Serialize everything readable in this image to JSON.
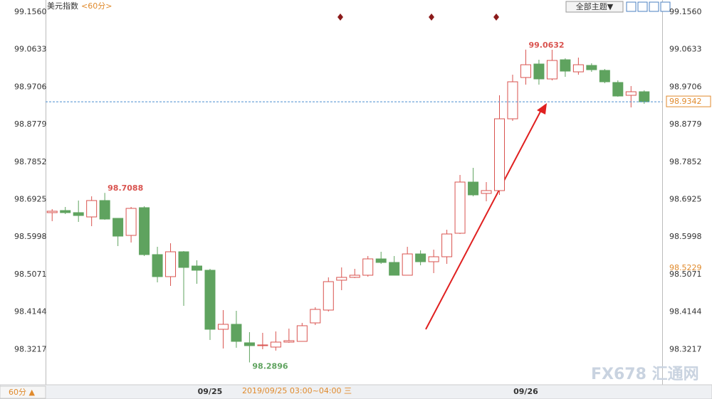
{
  "chart_data": {
    "type": "candlestick",
    "title": "美元指数",
    "period": "<60分>",
    "theme_button": "全部主题▼",
    "period_button": "60分 ▲",
    "footer": "2019/09/25 03:00~04:00 三",
    "watermark": "FX678 汇通网",
    "up_color": "#d9534f",
    "down_color": "#5fa35f",
    "categories": [
      null,
      null,
      null,
      null,
      null,
      null,
      null,
      null,
      null,
      null,
      null,
      null,
      "09/25",
      null,
      null,
      null,
      null,
      null,
      null,
      null,
      null,
      null,
      null,
      null,
      null,
      null,
      null,
      null,
      null,
      null,
      null,
      null,
      null,
      null,
      null,
      null,
      "09/26",
      null,
      null,
      null,
      null,
      null,
      null,
      null,
      null,
      null
    ],
    "open": [
      98.66,
      98.6652,
      98.66,
      98.6494,
      98.6899,
      98.6459,
      98.6037,
      98.6723,
      98.5562,
      98.5017,
      98.5632,
      98.528,
      98.5175,
      98.3715,
      98.3838,
      98.3381,
      98.331,
      98.3275,
      98.3398,
      98.3416,
      98.3873,
      98.419,
      98.4929,
      98.4999,
      98.5052,
      98.5456,
      98.5368,
      98.5052,
      98.5579,
      98.5386,
      98.5509,
      98.609,
      98.7356,
      98.7075,
      98.7145,
      98.8921,
      98.9942,
      99.0276,
      98.9907,
      99.0381,
      99.0082,
      99.0241,
      99.0118,
      98.9819,
      98.9502,
      98.959
    ],
    "high": [
      98.6688,
      98.674,
      98.6899,
      98.7004,
      98.7088,
      98.6459,
      98.674,
      98.6758,
      98.5755,
      98.5843,
      98.565,
      98.5421,
      98.521,
      98.419,
      98.4172,
      98.3644,
      98.3627,
      98.3662,
      98.3732,
      98.3873,
      98.426,
      98.4999,
      98.5245,
      98.521,
      98.5527,
      98.5632,
      98.5527,
      98.5755,
      98.5667,
      98.5685,
      98.6177,
      98.7532,
      98.7708,
      98.7356,
      98.9502,
      99.0012,
      99.0632,
      99.0381,
      99.0628,
      99.0417,
      99.0434,
      99.0294,
      99.0153,
      98.9871,
      98.9731,
      98.9625
    ],
    "low": [
      98.6389,
      98.6564,
      98.6371,
      98.6265,
      98.6424,
      98.5773,
      98.5861,
      98.5527,
      98.4876,
      98.4788,
      98.4295,
      98.4841,
      98.3451,
      98.324,
      98.3258,
      98.2896,
      98.3222,
      98.3187,
      98.3381,
      98.3433,
      98.382,
      98.4155,
      98.4682,
      98.4981,
      98.5017,
      98.5333,
      98.5052,
      98.5052,
      98.5298,
      98.5104,
      98.5333,
      98.6072,
      98.7004,
      98.6881,
      98.7039,
      98.8869,
      98.9766,
      98.9766,
      98.9871,
      98.9959,
      99.0012,
      99.0082,
      98.9801,
      98.9467,
      98.9203,
      98.9291
    ],
    "close": [
      98.6635,
      98.66,
      98.6529,
      98.6899,
      98.6441,
      98.6019,
      98.6705,
      98.5562,
      98.5017,
      98.5632,
      98.5245,
      98.5175,
      98.3715,
      98.3838,
      98.3416,
      98.331,
      98.3328,
      98.3398,
      98.3433,
      98.3803,
      98.4207,
      98.4893,
      98.4999,
      98.5052,
      98.5456,
      98.5368,
      98.5052,
      98.5579,
      98.5386,
      98.5509,
      98.6072,
      98.7356,
      98.7039,
      98.7145,
      98.8921,
      98.9836,
      99.0258,
      98.9907,
      99.0364,
      99.01,
      99.0258,
      99.0135,
      98.9836,
      98.9484,
      98.959,
      98.9342
    ],
    "last_price": 98.9342,
    "crosshair_value": 98.5229,
    "ylim": [
      98.236,
      99.1859
    ],
    "yticks": [
      {
        "value": 99.156,
        "label": "99.1560"
      },
      99.0633,
      98.9706,
      98.8779,
      98.7852,
      98.6925,
      98.5998,
      98.5071,
      98.4144,
      98.3217
    ]
  }
}
